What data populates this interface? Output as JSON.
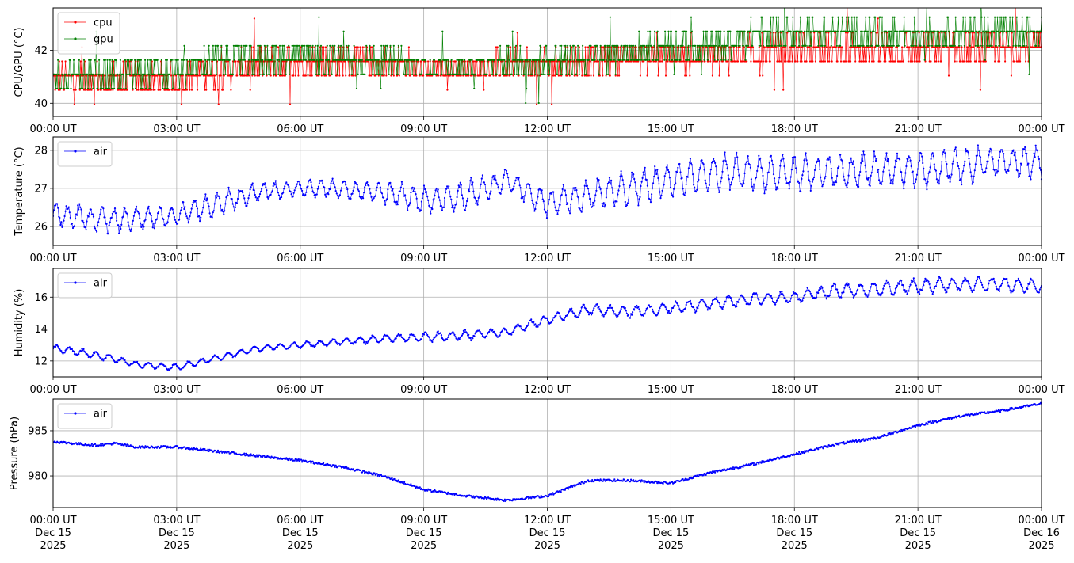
{
  "chart_data": [
    {
      "type": "line",
      "ylabel": "CPU/GPU (°C)",
      "ylim": [
        39.5,
        43.6
      ],
      "yticks": [
        40,
        42
      ],
      "xlim": [
        "2025-12-15 00:00",
        "2025-12-16 00:00"
      ],
      "xtick_labels": [
        "00:00 UT",
        "03:00 UT",
        "06:00 UT",
        "09:00 UT",
        "12:00 UT",
        "15:00 UT",
        "18:00 UT",
        "21:00 UT",
        "00:00 UT"
      ],
      "legend": "top-left",
      "grid": true,
      "series": [
        {
          "name": "cpu",
          "color": "#ff0000",
          "x_hours": [
            0,
            1,
            2,
            3,
            4,
            5,
            6,
            7,
            8,
            9,
            10,
            11,
            12,
            13,
            14,
            15,
            16,
            17,
            18,
            19,
            20,
            21,
            22,
            23,
            24
          ],
          "values": [
            41.0,
            40.9,
            40.8,
            40.8,
            41.2,
            41.5,
            41.6,
            41.6,
            41.5,
            41.3,
            41.3,
            41.4,
            41.5,
            41.6,
            41.8,
            41.8,
            41.7,
            41.9,
            42.0,
            42.0,
            42.0,
            42.0,
            42.0,
            42.0,
            42.0
          ],
          "band": [
            0.35,
            0.4,
            0.5,
            0.4,
            0.4,
            0.5,
            0.5,
            0.5,
            0.4,
            0.35,
            0.35,
            0.4,
            0.4,
            0.4,
            0.4,
            0.4,
            0.45,
            0.5,
            0.5,
            0.45,
            0.45,
            0.45,
            0.45,
            0.45,
            0.45
          ]
        },
        {
          "name": "gpu",
          "color": "#008000",
          "x_hours": [
            0,
            1,
            2,
            3,
            4,
            5,
            6,
            7,
            8,
            9,
            10,
            11,
            12,
            13,
            14,
            15,
            16,
            17,
            18,
            19,
            20,
            21,
            22,
            23,
            24
          ],
          "values": [
            41.0,
            41.0,
            41.0,
            41.1,
            41.6,
            41.6,
            41.7,
            41.6,
            41.5,
            41.3,
            41.3,
            41.4,
            41.5,
            41.6,
            41.9,
            42.0,
            42.1,
            42.5,
            42.6,
            42.6,
            42.6,
            42.6,
            42.6,
            42.6,
            42.6
          ],
          "band": [
            0.4,
            0.4,
            0.45,
            0.4,
            0.4,
            0.45,
            0.45,
            0.45,
            0.4,
            0.35,
            0.35,
            0.4,
            0.45,
            0.45,
            0.45,
            0.45,
            0.45,
            0.4,
            0.4,
            0.4,
            0.4,
            0.4,
            0.4,
            0.4,
            0.4
          ]
        }
      ]
    },
    {
      "type": "line",
      "ylabel": "Temperature (°C)",
      "ylim": [
        25.5,
        28.35
      ],
      "yticks": [
        26,
        27,
        28
      ],
      "xlim": [
        "2025-12-15 00:00",
        "2025-12-16 00:00"
      ],
      "xtick_labels": [
        "00:00 UT",
        "03:00 UT",
        "06:00 UT",
        "09:00 UT",
        "12:00 UT",
        "15:00 UT",
        "18:00 UT",
        "21:00 UT",
        "00:00 UT"
      ],
      "legend": "top-left",
      "grid": true,
      "series": [
        {
          "name": "air",
          "color": "#0000ff",
          "x_hours": [
            0,
            1,
            2,
            3,
            4,
            5,
            6,
            7,
            8,
            9,
            10,
            11,
            12,
            13,
            14,
            15,
            16,
            17,
            18,
            19,
            20,
            21,
            22,
            23,
            24
          ],
          "values": [
            26.3,
            26.2,
            26.2,
            26.3,
            26.6,
            26.9,
            27.0,
            27.0,
            26.9,
            26.7,
            26.8,
            27.2,
            26.6,
            26.8,
            27.0,
            27.2,
            27.4,
            27.4,
            27.4,
            27.4,
            27.5,
            27.5,
            27.6,
            27.7,
            27.7
          ],
          "band": [
            0.3,
            0.35,
            0.3,
            0.25,
            0.35,
            0.25,
            0.2,
            0.25,
            0.3,
            0.35,
            0.4,
            0.3,
            0.35,
            0.4,
            0.45,
            0.45,
            0.45,
            0.45,
            0.45,
            0.45,
            0.45,
            0.45,
            0.45,
            0.4,
            0.4
          ]
        }
      ]
    },
    {
      "type": "line",
      "ylabel": "Humidity (%)",
      "ylim": [
        11.0,
        17.8
      ],
      "yticks": [
        12,
        14,
        16
      ],
      "xlim": [
        "2025-12-15 00:00",
        "2025-12-16 00:00"
      ],
      "xtick_labels": [
        "00:00 UT",
        "03:00 UT",
        "06:00 UT",
        "09:00 UT",
        "12:00 UT",
        "15:00 UT",
        "18:00 UT",
        "21:00 UT",
        "00:00 UT"
      ],
      "legend": "top-left",
      "grid": true,
      "series": [
        {
          "name": "air",
          "color": "#0000ff",
          "x_hours": [
            0,
            1,
            2,
            3,
            4,
            5,
            6,
            7,
            8,
            9,
            10,
            11,
            12,
            13,
            14,
            15,
            16,
            17,
            18,
            19,
            20,
            21,
            22,
            23,
            24
          ],
          "values": [
            12.8,
            12.4,
            11.8,
            11.6,
            12.2,
            12.8,
            13.0,
            13.2,
            13.4,
            13.5,
            13.6,
            13.8,
            14.6,
            15.2,
            15.1,
            15.3,
            15.6,
            15.9,
            16.0,
            16.4,
            16.5,
            16.7,
            16.8,
            16.8,
            16.7
          ],
          "band": [
            0.2,
            0.25,
            0.2,
            0.2,
            0.2,
            0.2,
            0.2,
            0.2,
            0.25,
            0.3,
            0.3,
            0.25,
            0.3,
            0.35,
            0.35,
            0.35,
            0.4,
            0.4,
            0.4,
            0.45,
            0.45,
            0.45,
            0.45,
            0.45,
            0.45
          ]
        }
      ]
    },
    {
      "type": "line",
      "ylabel": "Pressure (hPa)",
      "ylim": [
        976.5,
        988.5
      ],
      "yticks": [
        980,
        985
      ],
      "xlim": [
        "2025-12-15 00:00",
        "2025-12-16 00:00"
      ],
      "xtick_labels": [
        "00:00 UT\nDec 15\n2025",
        "03:00 UT\nDec 15\n2025",
        "06:00 UT\nDec 15\n2025",
        "09:00 UT\nDec 15\n2025",
        "12:00 UT\nDec 15\n2025",
        "15:00 UT\nDec 15\n2025",
        "18:00 UT\nDec 15\n2025",
        "21:00 UT\nDec 15\n2025",
        "00:00 UT\nDec 16\n2025"
      ],
      "legend": "top-left",
      "grid": true,
      "series": [
        {
          "name": "air",
          "color": "#0000ff",
          "x_hours": [
            0,
            1,
            1.5,
            2,
            3,
            4,
            5,
            6,
            7,
            8,
            9,
            10,
            11,
            12,
            13,
            14,
            15,
            16,
            17,
            18,
            19,
            20,
            21,
            22,
            23,
            24
          ],
          "values": [
            983.8,
            983.4,
            983.6,
            983.2,
            983.2,
            982.7,
            982.2,
            981.7,
            981.0,
            980.0,
            978.5,
            977.8,
            977.3,
            977.8,
            979.5,
            979.5,
            979.2,
            980.4,
            981.3,
            982.4,
            983.5,
            984.2,
            985.6,
            986.6,
            987.2,
            988.0
          ],
          "band": [
            0.05,
            0.05,
            0.05,
            0.05,
            0.05,
            0.05,
            0.05,
            0.05,
            0.05,
            0.05,
            0.05,
            0.05,
            0.05,
            0.05,
            0.05,
            0.05,
            0.05,
            0.05,
            0.05,
            0.05,
            0.05,
            0.05,
            0.05,
            0.05,
            0.05,
            0.05
          ]
        }
      ]
    }
  ]
}
